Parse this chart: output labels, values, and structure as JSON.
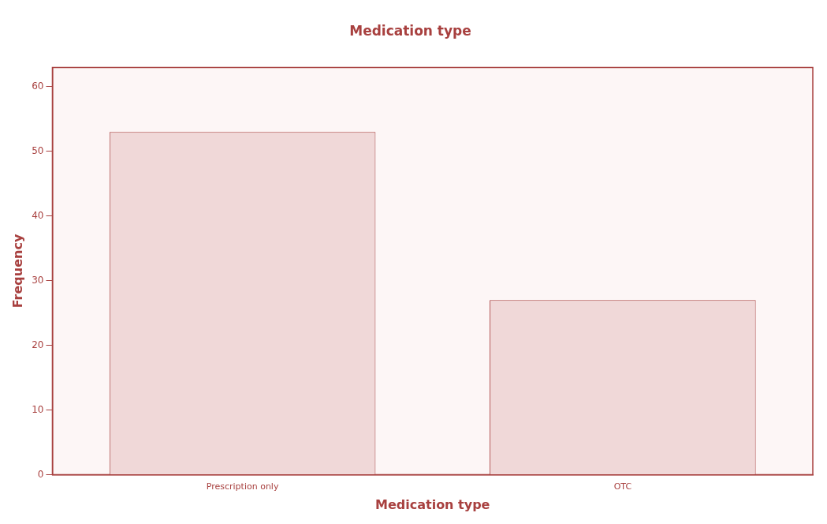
{
  "chart_data": {
    "type": "bar",
    "title": "Medication type",
    "xlabel": "Medication type",
    "ylabel": "Frequency",
    "categories": [
      "Prescription only",
      "OTC"
    ],
    "values": [
      53,
      27
    ],
    "color": "#f0d8d8",
    "ylim": [
      0,
      63
    ],
    "yticks": [
      0,
      10,
      20,
      30,
      40,
      50,
      60
    ],
    "grid": false,
    "legend": false
  }
}
